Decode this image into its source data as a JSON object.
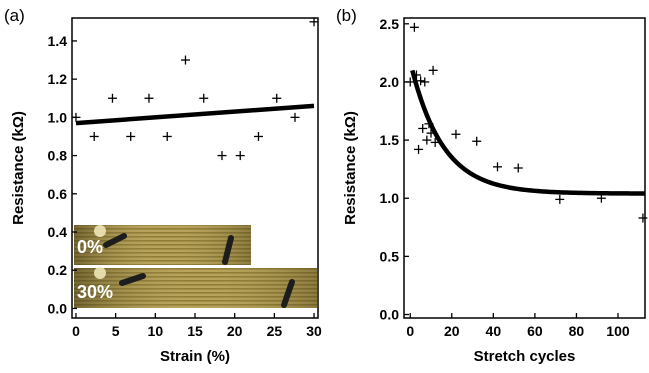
{
  "chart_data": [
    {
      "type": "scatter",
      "panel_label": "(a)",
      "xlabel": "Strain (%)",
      "ylabel": "Resistance (kΩ)",
      "xlim": [
        -0.5,
        30.5
      ],
      "ylim": [
        -0.05,
        1.52
      ],
      "xticks": [
        0,
        5,
        10,
        15,
        20,
        25,
        30
      ],
      "yticks": [
        0.0,
        0.2,
        0.4,
        0.6,
        0.8,
        1.0,
        1.2,
        1.4
      ],
      "ytick_labels": [
        "0.0",
        "0.2",
        "0.4",
        "0.6",
        "0.8",
        "1.0",
        "1.2",
        "1.4"
      ],
      "grid": false,
      "marker": "plus",
      "points": [
        {
          "x": 0,
          "y": 1.0
        },
        {
          "x": 2.3,
          "y": 0.9
        },
        {
          "x": 4.6,
          "y": 1.1
        },
        {
          "x": 6.9,
          "y": 0.9
        },
        {
          "x": 9.2,
          "y": 1.1
        },
        {
          "x": 11.5,
          "y": 0.9
        },
        {
          "x": 13.8,
          "y": 1.3
        },
        {
          "x": 16.1,
          "y": 1.1
        },
        {
          "x": 18.4,
          "y": 0.8
        },
        {
          "x": 20.7,
          "y": 0.8
        },
        {
          "x": 23.0,
          "y": 0.9
        },
        {
          "x": 25.3,
          "y": 1.1
        },
        {
          "x": 27.6,
          "y": 1.0
        },
        {
          "x": 30.0,
          "y": 1.5
        }
      ],
      "fit": {
        "type": "linear",
        "x": [
          0,
          30
        ],
        "y": [
          0.97,
          1.06
        ]
      },
      "insets": [
        {
          "label": "0%"
        },
        {
          "label": "30%"
        }
      ]
    },
    {
      "type": "scatter",
      "panel_label": "(b)",
      "xlabel": "Stretch cycles",
      "ylabel": "Resistance (kΩ)",
      "xlim": [
        -3,
        113
      ],
      "ylim": [
        -0.03,
        2.55
      ],
      "xticks": [
        0,
        20,
        40,
        60,
        80,
        100
      ],
      "yticks": [
        0.0,
        0.5,
        1.0,
        1.5,
        2.0,
        2.5
      ],
      "ytick_labels": [
        "0.0",
        "0.5",
        "1.0",
        "1.5",
        "2.0",
        "2.5"
      ],
      "grid": false,
      "marker": "plus",
      "points": [
        {
          "x": 0,
          "y": 2.0
        },
        {
          "x": 2,
          "y": 2.47
        },
        {
          "x": 3,
          "y": 2.06
        },
        {
          "x": 4,
          "y": 1.42
        },
        {
          "x": 5,
          "y": 2.01
        },
        {
          "x": 6,
          "y": 1.6
        },
        {
          "x": 7,
          "y": 2.0
        },
        {
          "x": 8,
          "y": 1.5
        },
        {
          "x": 9,
          "y": 1.64
        },
        {
          "x": 10,
          "y": 1.56
        },
        {
          "x": 11,
          "y": 2.1
        },
        {
          "x": 12,
          "y": 1.48
        },
        {
          "x": 22,
          "y": 1.55
        },
        {
          "x": 32,
          "y": 1.49
        },
        {
          "x": 42,
          "y": 1.27
        },
        {
          "x": 52,
          "y": 1.26
        },
        {
          "x": 72,
          "y": 0.99
        },
        {
          "x": 92,
          "y": 1.0
        },
        {
          "x": 112,
          "y": 0.83
        }
      ],
      "fit": {
        "type": "exponential_decay",
        "y0": 2.17,
        "plateau": 1.04,
        "tau": 15.5
      }
    }
  ]
}
